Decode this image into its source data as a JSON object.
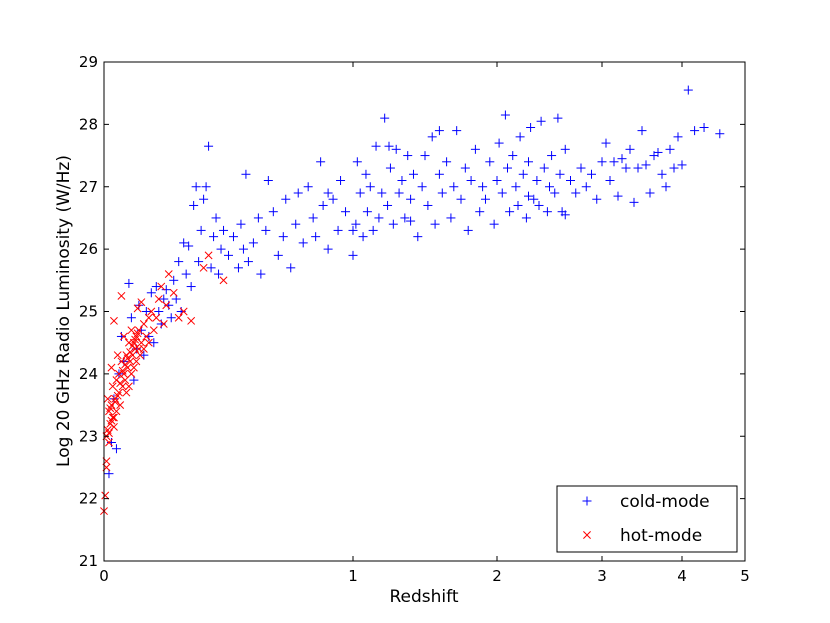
{
  "chart_data": {
    "type": "scatter",
    "title": "",
    "xlabel": "Redshift",
    "ylabel": "Log 20 GHz Radio Luminosity (W/Hz)",
    "xscale": "nonlinear (square-root-like stretch)",
    "xlim": [
      0,
      5
    ],
    "ylim": [
      21,
      29
    ],
    "x_ticks": [
      "0",
      "1",
      "2",
      "3",
      "4",
      "5"
    ],
    "y_ticks": [
      "21",
      "22",
      "23",
      "24",
      "25",
      "26",
      "27",
      "28",
      "29"
    ],
    "grid": false,
    "legend_position": "bottom-right",
    "series": [
      {
        "name": "cold-mode",
        "marker": "plus",
        "color": "#0000ff",
        "points": [
          [
            0.02,
            22.4
          ],
          [
            0.03,
            22.9
          ],
          [
            0.04,
            23.6
          ],
          [
            0.05,
            22.8
          ],
          [
            0.06,
            24.0
          ],
          [
            0.07,
            24.6
          ],
          [
            0.08,
            24.2
          ],
          [
            0.1,
            25.45
          ],
          [
            0.11,
            24.9
          ],
          [
            0.12,
            23.9
          ],
          [
            0.13,
            24.4
          ],
          [
            0.14,
            25.1
          ],
          [
            0.15,
            24.7
          ],
          [
            0.16,
            24.3
          ],
          [
            0.17,
            25.0
          ],
          [
            0.18,
            24.6
          ],
          [
            0.19,
            25.3
          ],
          [
            0.2,
            24.5
          ],
          [
            0.21,
            25.4
          ],
          [
            0.22,
            25.0
          ],
          [
            0.23,
            24.8
          ],
          [
            0.24,
            25.2
          ],
          [
            0.25,
            25.35
          ],
          [
            0.26,
            25.1
          ],
          [
            0.27,
            24.9
          ],
          [
            0.28,
            25.5
          ],
          [
            0.29,
            25.2
          ],
          [
            0.3,
            25.8
          ],
          [
            0.31,
            25.0
          ],
          [
            0.32,
            26.1
          ],
          [
            0.33,
            25.6
          ],
          [
            0.34,
            26.05
          ],
          [
            0.35,
            25.4
          ],
          [
            0.36,
            26.7
          ],
          [
            0.37,
            27.0
          ],
          [
            0.38,
            25.8
          ],
          [
            0.39,
            26.3
          ],
          [
            0.4,
            26.8
          ],
          [
            0.41,
            27.0
          ],
          [
            0.42,
            27.65
          ],
          [
            0.43,
            25.7
          ],
          [
            0.44,
            26.2
          ],
          [
            0.45,
            26.5
          ],
          [
            0.46,
            25.6
          ],
          [
            0.47,
            26.0
          ],
          [
            0.48,
            26.3
          ],
          [
            0.5,
            25.9
          ],
          [
            0.52,
            26.2
          ],
          [
            0.54,
            25.7
          ],
          [
            0.55,
            26.4
          ],
          [
            0.56,
            26.0
          ],
          [
            0.57,
            27.2
          ],
          [
            0.58,
            25.8
          ],
          [
            0.6,
            26.1
          ],
          [
            0.62,
            26.5
          ],
          [
            0.63,
            25.6
          ],
          [
            0.65,
            26.3
          ],
          [
            0.66,
            27.1
          ],
          [
            0.68,
            26.6
          ],
          [
            0.7,
            25.9
          ],
          [
            0.72,
            26.2
          ],
          [
            0.73,
            26.8
          ],
          [
            0.75,
            25.7
          ],
          [
            0.77,
            26.4
          ],
          [
            0.78,
            26.9
          ],
          [
            0.8,
            26.1
          ],
          [
            0.82,
            27.0
          ],
          [
            0.84,
            26.5
          ],
          [
            0.85,
            26.2
          ],
          [
            0.87,
            27.4
          ],
          [
            0.88,
            26.7
          ],
          [
            0.9,
            26.0
          ],
          [
            0.92,
            26.8
          ],
          [
            0.94,
            26.3
          ],
          [
            0.95,
            27.1
          ],
          [
            0.97,
            26.6
          ],
          [
            1.0,
            25.9
          ],
          [
            1.02,
            26.4
          ],
          [
            1.03,
            27.4
          ],
          [
            1.05,
            26.9
          ],
          [
            1.07,
            26.2
          ],
          [
            1.09,
            27.2
          ],
          [
            1.1,
            26.6
          ],
          [
            1.12,
            27.0
          ],
          [
            1.14,
            26.3
          ],
          [
            1.16,
            27.65
          ],
          [
            1.18,
            26.5
          ],
          [
            1.2,
            26.9
          ],
          [
            1.22,
            28.1
          ],
          [
            1.24,
            26.7
          ],
          [
            1.26,
            27.3
          ],
          [
            1.28,
            26.4
          ],
          [
            1.3,
            27.6
          ],
          [
            1.32,
            26.9
          ],
          [
            1.34,
            27.1
          ],
          [
            1.36,
            26.5
          ],
          [
            1.38,
            27.5
          ],
          [
            1.4,
            26.8
          ],
          [
            1.42,
            27.2
          ],
          [
            1.45,
            26.2
          ],
          [
            1.48,
            27.0
          ],
          [
            1.5,
            27.5
          ],
          [
            1.52,
            26.7
          ],
          [
            1.55,
            27.8
          ],
          [
            1.57,
            26.4
          ],
          [
            1.6,
            27.2
          ],
          [
            1.62,
            26.9
          ],
          [
            1.65,
            27.4
          ],
          [
            1.68,
            26.5
          ],
          [
            1.7,
            27.0
          ],
          [
            1.72,
            27.9
          ],
          [
            1.75,
            26.8
          ],
          [
            1.78,
            27.3
          ],
          [
            1.8,
            26.3
          ],
          [
            1.82,
            27.1
          ],
          [
            1.85,
            27.6
          ],
          [
            1.88,
            26.6
          ],
          [
            1.9,
            27.0
          ],
          [
            1.92,
            26.8
          ],
          [
            1.95,
            27.4
          ],
          [
            1.98,
            26.4
          ],
          [
            2.0,
            27.1
          ],
          [
            2.02,
            27.7
          ],
          [
            2.05,
            26.9
          ],
          [
            2.08,
            28.15
          ],
          [
            2.1,
            27.3
          ],
          [
            2.12,
            26.6
          ],
          [
            2.15,
            27.5
          ],
          [
            2.18,
            27.0
          ],
          [
            2.2,
            26.7
          ],
          [
            2.22,
            27.8
          ],
          [
            2.25,
            27.2
          ],
          [
            2.28,
            26.5
          ],
          [
            2.3,
            27.4
          ],
          [
            2.32,
            27.95
          ],
          [
            2.35,
            26.8
          ],
          [
            2.38,
            27.1
          ],
          [
            2.4,
            26.7
          ],
          [
            2.42,
            28.05
          ],
          [
            2.45,
            27.3
          ],
          [
            2.48,
            26.6
          ],
          [
            2.5,
            27.0
          ],
          [
            2.52,
            27.5
          ],
          [
            2.55,
            26.9
          ],
          [
            2.58,
            28.1
          ],
          [
            2.6,
            27.2
          ],
          [
            2.62,
            26.6
          ],
          [
            2.65,
            27.6
          ],
          [
            2.7,
            27.1
          ],
          [
            2.75,
            26.9
          ],
          [
            2.8,
            27.3
          ],
          [
            2.85,
            27.0
          ],
          [
            2.9,
            27.2
          ],
          [
            2.95,
            26.8
          ],
          [
            3.0,
            27.4
          ],
          [
            3.05,
            27.7
          ],
          [
            3.1,
            27.1
          ],
          [
            3.15,
            27.4
          ],
          [
            3.2,
            26.85
          ],
          [
            3.25,
            27.45
          ],
          [
            3.3,
            27.3
          ],
          [
            3.35,
            27.6
          ],
          [
            3.4,
            26.75
          ],
          [
            3.45,
            27.3
          ],
          [
            3.5,
            27.9
          ],
          [
            3.55,
            27.35
          ],
          [
            3.6,
            26.9
          ],
          [
            3.65,
            27.5
          ],
          [
            3.7,
            27.55
          ],
          [
            3.75,
            27.2
          ],
          [
            3.8,
            27.0
          ],
          [
            3.85,
            27.6
          ],
          [
            3.9,
            27.3
          ],
          [
            3.95,
            27.8
          ],
          [
            4.0,
            27.35
          ],
          [
            4.1,
            28.55
          ],
          [
            4.2,
            27.9
          ],
          [
            4.35,
            27.95
          ],
          [
            4.6,
            27.85
          ],
          [
            1.0,
            26.3
          ],
          [
            0.9,
            26.9
          ],
          [
            1.25,
            27.65
          ],
          [
            1.6,
            27.9
          ],
          [
            2.3,
            26.85
          ],
          [
            2.65,
            26.55
          ],
          [
            1.4,
            26.45
          ]
        ]
      },
      {
        "name": "hot-mode",
        "marker": "x",
        "color": "#ff0000",
        "points": [
          [
            0.0,
            21.8
          ],
          [
            0.005,
            22.05
          ],
          [
            0.01,
            22.6
          ],
          [
            0.01,
            23.0
          ],
          [
            0.015,
            23.6
          ],
          [
            0.02,
            23.4
          ],
          [
            0.02,
            22.9
          ],
          [
            0.025,
            23.2
          ],
          [
            0.03,
            24.1
          ],
          [
            0.03,
            23.5
          ],
          [
            0.035,
            23.8
          ],
          [
            0.04,
            24.85
          ],
          [
            0.04,
            23.3
          ],
          [
            0.045,
            23.6
          ],
          [
            0.05,
            23.9
          ],
          [
            0.05,
            23.4
          ],
          [
            0.055,
            24.3
          ],
          [
            0.06,
            23.7
          ],
          [
            0.06,
            24.0
          ],
          [
            0.065,
            23.5
          ],
          [
            0.07,
            25.25
          ],
          [
            0.07,
            24.2
          ],
          [
            0.075,
            23.8
          ],
          [
            0.08,
            24.6
          ],
          [
            0.08,
            24.0
          ],
          [
            0.085,
            23.9
          ],
          [
            0.09,
            24.3
          ],
          [
            0.09,
            23.7
          ],
          [
            0.095,
            24.1
          ],
          [
            0.1,
            24.5
          ],
          [
            0.1,
            23.8
          ],
          [
            0.105,
            24.2
          ],
          [
            0.11,
            24.0
          ],
          [
            0.11,
            24.7
          ],
          [
            0.115,
            24.3
          ],
          [
            0.12,
            24.5
          ],
          [
            0.12,
            24.1
          ],
          [
            0.125,
            24.4
          ],
          [
            0.13,
            24.6
          ],
          [
            0.13,
            24.2
          ],
          [
            0.135,
            25.05
          ],
          [
            0.14,
            24.4
          ],
          [
            0.14,
            24.7
          ],
          [
            0.145,
            24.3
          ],
          [
            0.15,
            25.15
          ],
          [
            0.15,
            24.5
          ],
          [
            0.16,
            24.8
          ],
          [
            0.16,
            24.4
          ],
          [
            0.17,
            24.6
          ],
          [
            0.18,
            24.9
          ],
          [
            0.18,
            24.5
          ],
          [
            0.19,
            25.0
          ],
          [
            0.2,
            24.7
          ],
          [
            0.21,
            24.9
          ],
          [
            0.22,
            25.2
          ],
          [
            0.23,
            25.4
          ],
          [
            0.24,
            24.8
          ],
          [
            0.25,
            25.1
          ],
          [
            0.26,
            25.6
          ],
          [
            0.28,
            25.3
          ],
          [
            0.3,
            24.9
          ],
          [
            0.32,
            25.0
          ],
          [
            0.35,
            24.85
          ],
          [
            0.4,
            25.7
          ],
          [
            0.42,
            25.9
          ],
          [
            0.48,
            25.5
          ],
          [
            0.01,
            22.5
          ],
          [
            0.015,
            23.1
          ],
          [
            0.025,
            23.45
          ],
          [
            0.035,
            23.3
          ],
          [
            0.045,
            23.55
          ],
          [
            0.055,
            23.65
          ],
          [
            0.065,
            23.85
          ],
          [
            0.075,
            24.05
          ],
          [
            0.085,
            24.15
          ],
          [
            0.095,
            24.25
          ],
          [
            0.105,
            24.35
          ],
          [
            0.115,
            24.45
          ],
          [
            0.125,
            24.55
          ],
          [
            0.135,
            24.65
          ],
          [
            0.02,
            23.05
          ],
          [
            0.03,
            23.25
          ],
          [
            0.04,
            23.15
          ]
        ]
      }
    ]
  }
}
